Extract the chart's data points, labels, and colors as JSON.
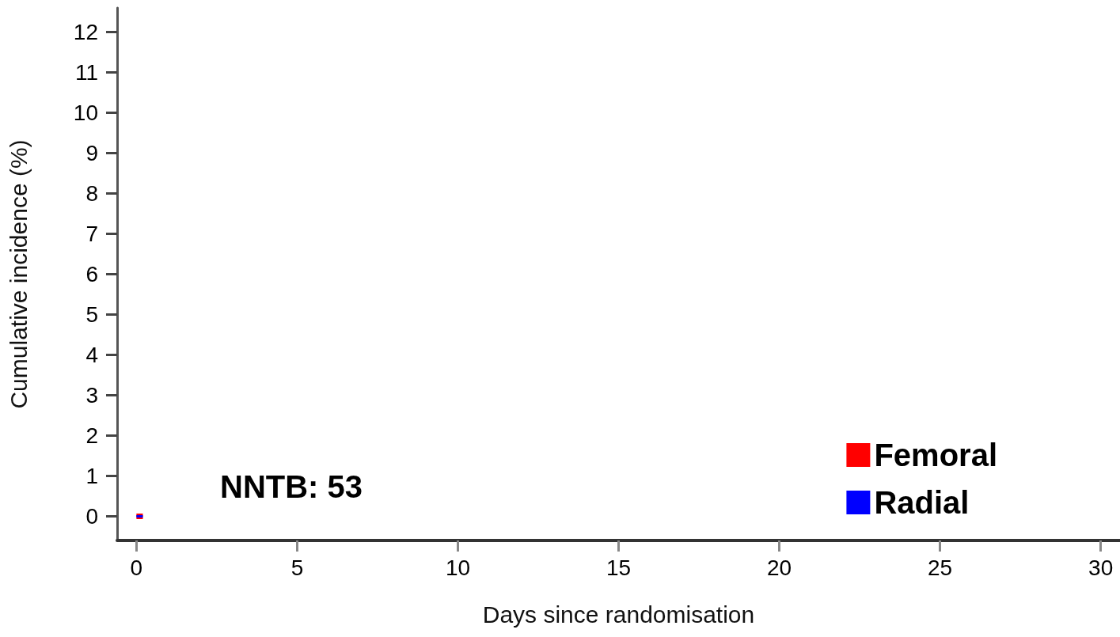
{
  "chart_data": {
    "type": "line",
    "xlabel": "Days since randomisation",
    "ylabel": "Cumulative incidence (%)",
    "annotations": [
      "NNTB: 53"
    ],
    "x": [
      0,
      0.2
    ],
    "series": [
      {
        "name": "Femoral",
        "color": "#ff0000",
        "values": [
          0,
          0
        ]
      },
      {
        "name": "Radial",
        "color": "#0000ff",
        "values": [
          0,
          0
        ]
      }
    ],
    "xlim": [
      -0.6,
      30.6
    ],
    "xticks": [
      0,
      5,
      10,
      15,
      20,
      25,
      30
    ],
    "ylim": [
      -0.6,
      12.6
    ],
    "yticks": [
      0,
      1,
      2,
      3,
      4,
      5,
      6,
      7,
      8,
      9,
      10,
      11,
      12
    ],
    "grid": false,
    "legend": "bottom right",
    "marker": "none"
  }
}
